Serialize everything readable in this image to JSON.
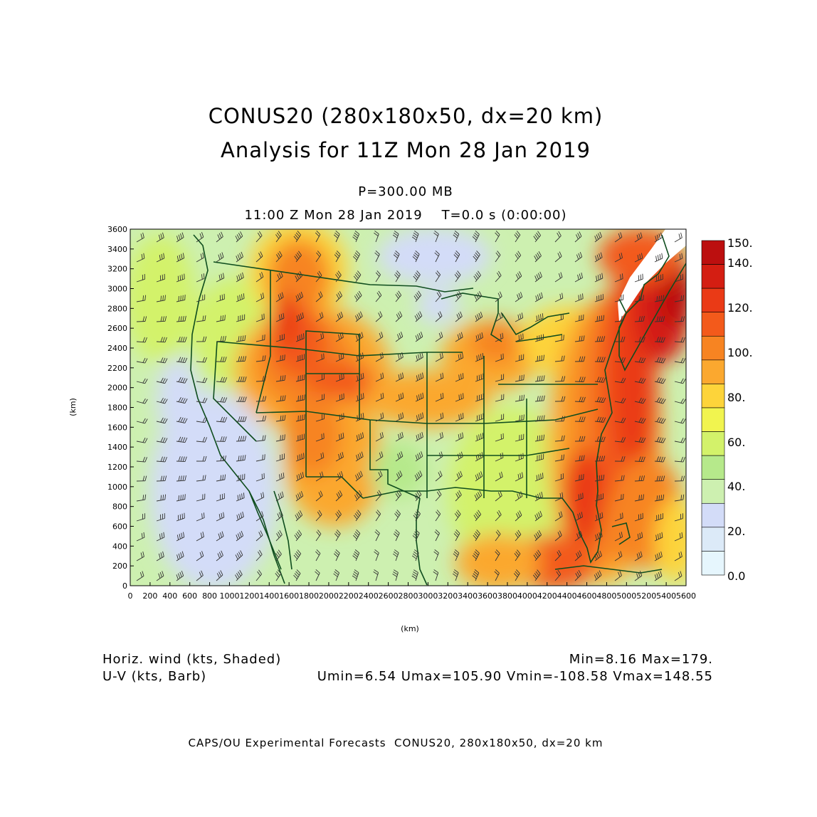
{
  "title": {
    "line1": "CONUS20 (280x180x50, dx=20 km)",
    "line2": "Analysis for 11Z Mon 28 Jan 2019"
  },
  "level_label": "P=300.00 MB",
  "time_label": "11:00 Z Mon 28 Jan 2019    T=0.0 s (0:00:00)",
  "axes": {
    "xlabel": "(km)",
    "ylabel": "(km)",
    "x_range": [
      0,
      5600
    ],
    "y_range": [
      0,
      3600
    ],
    "x_ticks": [
      "0",
      "200",
      "400",
      "600",
      "800",
      "1000",
      "1200",
      "1400",
      "1600",
      "1800",
      "2000",
      "2200",
      "2400",
      "2600",
      "2800",
      "3000",
      "3200",
      "3400",
      "3600",
      "3800",
      "4000",
      "4200",
      "4400",
      "4600",
      "4800",
      "5000",
      "5200",
      "5400",
      "5600"
    ],
    "y_ticks": [
      "0",
      "200",
      "400",
      "600",
      "800",
      "1000",
      "1200",
      "1400",
      "1600",
      "1800",
      "2000",
      "2200",
      "2400",
      "2600",
      "2800",
      "3000",
      "3200",
      "3400",
      "3600"
    ]
  },
  "colorbar": {
    "labels": [
      "150.",
      "140.",
      "120.",
      "100.",
      "80.",
      "60.",
      "40.",
      "20.",
      "0.0"
    ],
    "colors": [
      "#bc0f0f",
      "#d41e12",
      "#ea3a16",
      "#f35a1b",
      "#f78422",
      "#fba82f",
      "#fdd43a",
      "#f1f44f",
      "#d3f26a",
      "#b6e98b",
      "#cdf0b0",
      "#d3dcf8",
      "#dceaf8",
      "#e6f6fd"
    ]
  },
  "shading": {
    "variable": "Horiz. wind (kts, Shaded)",
    "stats": "Min=8.16 Max=179."
  },
  "barbs": {
    "variable": "U-V (kts, Barb)",
    "stats": "Umin=6.54 Umax=105.90 Vmin=-108.58 Vmax=148.55"
  },
  "map_colors": {
    "boundaries": "#0f4d1e"
  },
  "credit": "CAPS/OU Experimental Forecasts  CONUS20, 280x180x50, dx=20 km"
}
